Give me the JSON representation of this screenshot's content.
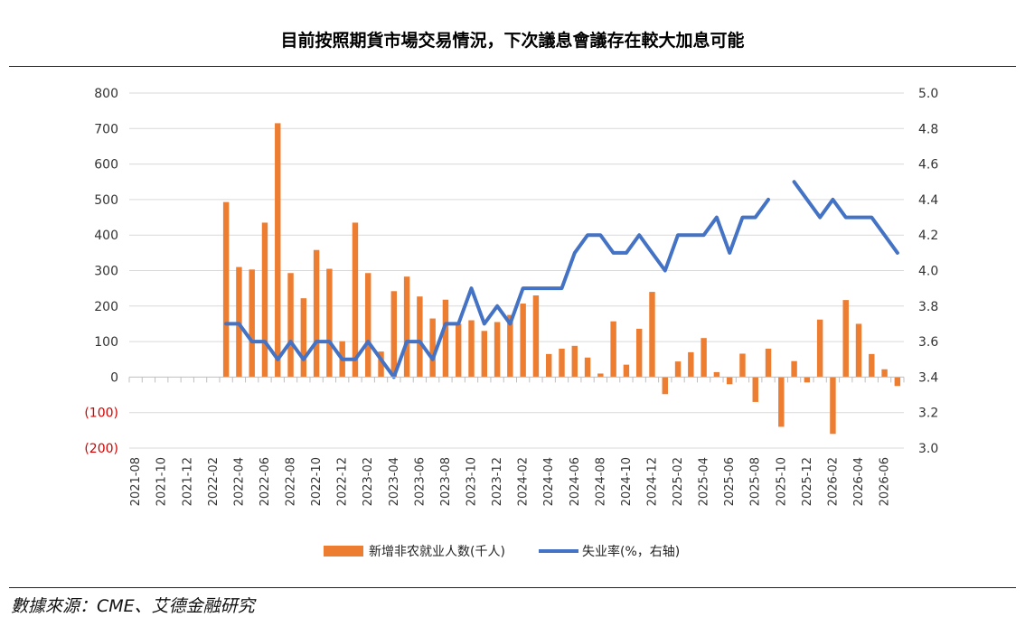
{
  "title": "目前按照期貨市場交易情況，下次議息會議存在較大加息可能",
  "source": "數據來源：CME、艾德金融研究",
  "colors": {
    "bar": "#ED7D31",
    "line": "#4472C4",
    "negative_tick": "#D40000"
  },
  "chart_data": {
    "type": "bar+line",
    "x": [
      "2021-08",
      "2021-09",
      "2021-10",
      "2021-11",
      "2021-12",
      "2022-01",
      "2022-02",
      "2022-03",
      "2022-04",
      "2022-05",
      "2022-06",
      "2022-07",
      "2022-08",
      "2022-09",
      "2022-10",
      "2022-11",
      "2022-12",
      "2023-01",
      "2023-02",
      "2023-03",
      "2023-04",
      "2023-05",
      "2023-06",
      "2023-07",
      "2023-08",
      "2023-09",
      "2023-10",
      "2023-11",
      "2023-12",
      "2024-01",
      "2024-02",
      "2024-03",
      "2024-04",
      "2024-05",
      "2024-06",
      "2024-07",
      "2024-08",
      "2024-09",
      "2024-10",
      "2024-11",
      "2024-12",
      "2025-01",
      "2025-02",
      "2025-03",
      "2025-04",
      "2025-05",
      "2025-06",
      "2025-07",
      "2025-08",
      "2025-09",
      "2025-10",
      "2025-11",
      "2025-12",
      "2026-01",
      "2026-02",
      "2026-03",
      "2026-04",
      "2026-05",
      "2026-06",
      "2026-07"
    ],
    "x_tick_labels": [
      "2021-08",
      "2021-10",
      "2021-12",
      "2022-02",
      "2022-04",
      "2022-06",
      "2022-08",
      "2022-10",
      "2022-12",
      "2023-02",
      "2023-04",
      "2023-06",
      "2023-08",
      "2023-10",
      "2023-12",
      "2024-02",
      "2024-04",
      "2024-06",
      "2024-08",
      "2024-10",
      "2024-12",
      "2025-02",
      "2025-04",
      "2025-06",
      "2025-08",
      "2025-10",
      "2025-12",
      "2026-02",
      "2026-04",
      "2026-06"
    ],
    "series": [
      {
        "name": "新增非农就业人数(千人)",
        "type": "bar",
        "axis": "left",
        "values": [
          null,
          null,
          null,
          null,
          null,
          null,
          null,
          493,
          310,
          303,
          435,
          715,
          293,
          222,
          358,
          305,
          101,
          435,
          293,
          72,
          242,
          283,
          227,
          165,
          218,
          150,
          160,
          130,
          155,
          175,
          207,
          230,
          65,
          80,
          88,
          55,
          10,
          157,
          35,
          136,
          240,
          -48,
          44,
          70,
          110,
          14,
          -20,
          66,
          -70,
          80,
          -140,
          45,
          -15,
          162,
          -160,
          217,
          150,
          65,
          22,
          -25
        ]
      },
      {
        "name": "失业率(%，右轴)",
        "type": "line",
        "axis": "right",
        "values": [
          null,
          null,
          null,
          null,
          null,
          null,
          null,
          3.7,
          3.7,
          3.6,
          3.6,
          3.5,
          3.6,
          3.5,
          3.6,
          3.6,
          3.5,
          3.5,
          3.6,
          3.5,
          3.4,
          3.6,
          3.6,
          3.5,
          3.7,
          3.7,
          3.9,
          3.7,
          3.8,
          3.7,
          3.9,
          3.9,
          3.9,
          3.9,
          4.1,
          4.2,
          4.2,
          4.1,
          4.1,
          4.2,
          4.1,
          4.0,
          4.2,
          4.2,
          4.2,
          4.3,
          4.1,
          4.3,
          4.3,
          4.4,
          null,
          4.5,
          4.4,
          4.3,
          4.4,
          4.3,
          4.3,
          4.3,
          4.2,
          4.1
        ]
      }
    ],
    "y_left": {
      "min": -200,
      "max": 800,
      "ticks": [
        800,
        700,
        600,
        500,
        400,
        300,
        200,
        100,
        0,
        -100,
        -200
      ],
      "tick_labels": [
        "800",
        "700",
        "600",
        "500",
        "400",
        "300",
        "200",
        "100",
        "0",
        "(100)",
        "(200)"
      ]
    },
    "y_right": {
      "min": 3.0,
      "max": 5.0,
      "ticks": [
        5.0,
        4.8,
        4.6,
        4.4,
        4.2,
        4.0,
        3.8,
        3.6,
        3.4,
        3.2,
        3.0
      ],
      "tick_labels": [
        "5.0",
        "4.8",
        "4.6",
        "4.4",
        "4.2",
        "4.0",
        "3.8",
        "3.6",
        "3.4",
        "3.2",
        "3.0"
      ]
    },
    "grid": true,
    "legend": "bottom"
  }
}
